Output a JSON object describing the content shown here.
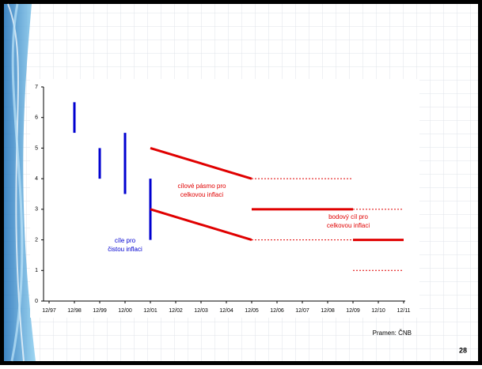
{
  "slide": {
    "source": "Pramen: ČNB",
    "page_number": "28"
  },
  "chart_data": {
    "type": "target-ranges",
    "categories": [
      "12/97",
      "12/98",
      "12/99",
      "12/00",
      "12/01",
      "12/02",
      "12/03",
      "12/04",
      "12/05",
      "12/06",
      "12/07",
      "12/08",
      "12/09",
      "12/10",
      "12/11"
    ],
    "ylim": [
      0,
      7
    ],
    "yticks": [
      0,
      1,
      2,
      3,
      4,
      5,
      6,
      7
    ],
    "ranges": {
      "color": "#0000d0",
      "items": [
        {
          "x": "12/98",
          "low": 5.5,
          "high": 6.5
        },
        {
          "x": "12/99",
          "low": 4,
          "high": 5
        },
        {
          "x": "12/00",
          "low": 3.5,
          "high": 5.5
        },
        {
          "x": "12/01",
          "low": 2,
          "high": 4
        }
      ]
    },
    "lines": {
      "color": "#e00000",
      "items": [
        {
          "x": [
            "12/01",
            "12/05"
          ],
          "values": [
            5,
            4
          ],
          "style": "solid"
        },
        {
          "x": [
            "12/01",
            "12/05"
          ],
          "values": [
            3,
            2
          ],
          "style": "solid"
        },
        {
          "x": [
            "12/05",
            "12/09"
          ],
          "values": [
            4,
            4
          ],
          "style": "dashed"
        },
        {
          "x": [
            "12/05",
            "12/09"
          ],
          "values": [
            2,
            2
          ],
          "style": "dashed"
        },
        {
          "x": [
            "12/05",
            "12/09"
          ],
          "values": [
            3,
            3
          ],
          "style": "solid"
        },
        {
          "x": [
            "12/09",
            "12/11"
          ],
          "values": [
            3,
            3
          ],
          "style": "dashed"
        },
        {
          "x": [
            "12/09",
            "12/11"
          ],
          "values": [
            2,
            2
          ],
          "style": "solid"
        },
        {
          "x": [
            "12/09",
            "12/11"
          ],
          "values": [
            1,
            1
          ],
          "style": "dashed"
        }
      ]
    },
    "annotations": [
      {
        "lines": [
          "cílové pásmo pro",
          "celkovou inflaci"
        ],
        "color": "#e00000"
      },
      {
        "lines": [
          "bodový cíl pro",
          "celkovou inflaci"
        ],
        "color": "#e00000"
      },
      {
        "lines": [
          "cíle pro",
          "čistou inflaci"
        ],
        "color": "#0000d0"
      }
    ]
  }
}
